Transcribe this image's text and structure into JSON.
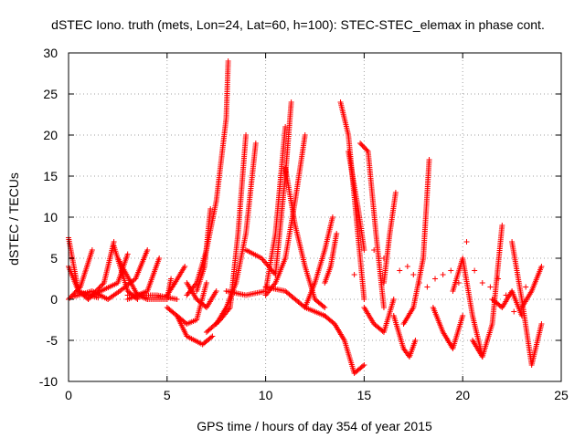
{
  "chart_data": {
    "type": "scatter",
    "title": "dSTEC Iono. truth (mets, Lon=24, Lat=60, h=100): STEC-STEC_elemax in phase cont.",
    "xlabel": "GPS time / hours of day 354 of year 2015",
    "ylabel": "dSTEC  / TECUs",
    "xlim": [
      0,
      25
    ],
    "ylim": [
      -10,
      30
    ],
    "xticks": [
      0,
      5,
      10,
      15,
      20,
      25
    ],
    "yticks": [
      -10,
      -5,
      0,
      5,
      10,
      15,
      20,
      25,
      30
    ],
    "xtick_labels": [
      "0",
      "5",
      "10",
      "15",
      "20",
      "25"
    ],
    "ytick_labels": [
      "-10",
      "-5",
      "0",
      "5",
      "10",
      "15",
      "20",
      "25",
      "30"
    ],
    "grid": true,
    "legend": "none",
    "marker": "+",
    "color": "#ff0000",
    "arcs": [
      {
        "x": [
          0.0,
          0.5,
          1.0
        ],
        "y": [
          7.5,
          1.0,
          0.0
        ]
      },
      {
        "x": [
          0.0,
          0.6,
          1.2
        ],
        "y": [
          0.0,
          1.5,
          6.0
        ]
      },
      {
        "x": [
          0.0,
          0.5,
          1.0,
          1.5
        ],
        "y": [
          4.0,
          1.0,
          0.5,
          0.2
        ]
      },
      {
        "x": [
          0.2,
          1.2,
          2.0
        ],
        "y": [
          0.3,
          1.0,
          0.0
        ]
      },
      {
        "x": [
          1.0,
          1.8,
          2.3
        ],
        "y": [
          0.0,
          2.0,
          7.0
        ]
      },
      {
        "x": [
          2.3,
          3.0,
          3.5
        ],
        "y": [
          6.5,
          1.0,
          0.0
        ]
      },
      {
        "x": [
          1.2,
          2.5,
          3.0
        ],
        "y": [
          0.5,
          2.0,
          5.5
        ]
      },
      {
        "x": [
          2.0,
          2.6,
          3.4,
          4.0
        ],
        "y": [
          0.0,
          1.0,
          2.5,
          6.0
        ]
      },
      {
        "x": [
          2.5,
          3.5,
          4.0
        ],
        "y": [
          5.0,
          0.5,
          0.0
        ]
      },
      {
        "x": [
          3.0,
          4.0,
          4.6
        ],
        "y": [
          0.0,
          1.0,
          5.0
        ]
      },
      {
        "x": [
          3.0,
          4.5,
          5.5
        ],
        "y": [
          0.5,
          0.5,
          0.0
        ]
      },
      {
        "x": [
          4.0,
          5.0,
          5.2
        ],
        "y": [
          0.0,
          0.0,
          2.5
        ]
      },
      {
        "x": [
          5.0,
          5.4,
          5.9
        ],
        "y": [
          0.5,
          2.0,
          4.0
        ]
      },
      {
        "x": [
          5.0,
          5.5,
          6.0,
          6.5,
          7.0
        ],
        "y": [
          -1.0,
          -2.0,
          -3.0,
          -2.5,
          2.0
        ]
      },
      {
        "x": [
          5.5,
          6.0,
          6.8,
          7.3
        ],
        "y": [
          -2.0,
          -4.5,
          -5.5,
          -4.5
        ]
      },
      {
        "x": [
          6.0,
          6.5,
          7.0,
          7.5
        ],
        "y": [
          2.0,
          0.0,
          -1.0,
          1.0
        ]
      },
      {
        "x": [
          6.5,
          6.9,
          7.2
        ],
        "y": [
          1.0,
          4.0,
          11.0
        ]
      },
      {
        "x": [
          6.0,
          6.5,
          7.0,
          7.5,
          8.0,
          8.1
        ],
        "y": [
          0.5,
          2.0,
          6.0,
          12.0,
          22.0,
          29.0
        ]
      },
      {
        "x": [
          7.0,
          7.7,
          8.2,
          8.6,
          9.0
        ],
        "y": [
          -4.0,
          -2.5,
          -1.0,
          8.0,
          20.0
        ]
      },
      {
        "x": [
          7.5,
          8.0,
          8.5,
          9.0,
          9.5
        ],
        "y": [
          -3.0,
          -1.0,
          2.0,
          8.0,
          19.0
        ]
      },
      {
        "x": [
          8.0,
          9.0,
          10.0,
          10.5,
          11.0
        ],
        "y": [
          1.0,
          0.5,
          1.0,
          8.0,
          21.0
        ]
      },
      {
        "x": [
          9.0,
          9.8,
          10.5,
          11.0,
          11.3
        ],
        "y": [
          6.0,
          5.0,
          3.0,
          15.0,
          24.0
        ]
      },
      {
        "x": [
          10.0,
          10.5,
          11.0,
          11.5,
          12.0
        ],
        "y": [
          0.5,
          2.0,
          5.0,
          12.0,
          20.0
        ]
      },
      {
        "x": [
          10.0,
          11.0,
          12.0,
          13.0
        ],
        "y": [
          1.5,
          1.0,
          -1.0,
          -2.0
        ]
      },
      {
        "x": [
          11.0,
          11.5,
          12.0,
          12.5,
          13.0
        ],
        "y": [
          16.0,
          9.0,
          4.0,
          0.0,
          -1.0
        ]
      },
      {
        "x": [
          12.0,
          12.5,
          13.0,
          13.4
        ],
        "y": [
          -1.0,
          2.0,
          6.0,
          10.0
        ]
      },
      {
        "x": [
          13.0,
          13.3,
          13.6
        ],
        "y": [
          2.0,
          4.0,
          8.0
        ]
      },
      {
        "x": [
          13.0,
          13.5,
          14.0,
          14.5,
          15.0
        ],
        "y": [
          -2.0,
          -3.0,
          -5.0,
          -9.0,
          -8.0
        ]
      },
      {
        "x": [
          13.8,
          14.2,
          14.6,
          15.0
        ],
        "y": [
          24.0,
          20.0,
          10.0,
          0.0
        ]
      },
      {
        "x": [
          14.2,
          14.7,
          15.0
        ],
        "y": [
          18.0,
          11.0,
          6.0
        ]
      },
      {
        "x": [
          14.8,
          15.2,
          15.6,
          16.0
        ],
        "y": [
          19.0,
          18.0,
          8.0,
          -1.0
        ]
      },
      {
        "x": [
          15.0,
          15.5,
          16.0,
          16.5
        ],
        "y": [
          -1.0,
          -3.0,
          -4.0,
          0.0
        ]
      },
      {
        "x": [
          16.0,
          16.3,
          16.6
        ],
        "y": [
          2.0,
          8.0,
          13.0
        ]
      },
      {
        "x": [
          16.5,
          17.0,
          17.3,
          17.6
        ],
        "y": [
          -2.0,
          -6.0,
          -7.0,
          -5.0
        ]
      },
      {
        "x": [
          17.0,
          17.5,
          18.0,
          18.3
        ],
        "y": [
          -3.0,
          -1.0,
          5.0,
          17.0
        ]
      },
      {
        "x": [
          18.5,
          19.0,
          19.5,
          20.0
        ],
        "y": [
          -1.0,
          -4.0,
          -6.0,
          -2.0
        ]
      },
      {
        "x": [
          19.5,
          20.0,
          20.5,
          21.0
        ],
        "y": [
          1.0,
          5.0,
          -2.0,
          -7.0
        ]
      },
      {
        "x": [
          20.5,
          21.0,
          21.5,
          22.0
        ],
        "y": [
          -5.0,
          -7.0,
          -3.0,
          9.0
        ]
      },
      {
        "x": [
          21.5,
          22.0,
          22.5,
          23.0
        ],
        "y": [
          0.0,
          -1.0,
          1.0,
          -2.0
        ]
      },
      {
        "x": [
          22.5,
          23.0,
          23.5,
          24.0
        ],
        "y": [
          7.0,
          0.0,
          -8.0,
          -3.0
        ]
      },
      {
        "x": [
          23.0,
          23.5,
          24.0
        ],
        "y": [
          -1.0,
          1.0,
          4.0
        ]
      }
    ],
    "scatter_points": [
      {
        "x": 14.5,
        "y": 3.0
      },
      {
        "x": 15.5,
        "y": 6.0
      },
      {
        "x": 16.0,
        "y": 5.0
      },
      {
        "x": 16.8,
        "y": 3.5
      },
      {
        "x": 17.2,
        "y": 4.0
      },
      {
        "x": 17.5,
        "y": 3.0
      },
      {
        "x": 17.8,
        "y": 2.0
      },
      {
        "x": 18.2,
        "y": 1.5
      },
      {
        "x": 18.6,
        "y": 2.5
      },
      {
        "x": 19.0,
        "y": 3.0
      },
      {
        "x": 19.4,
        "y": 3.5
      },
      {
        "x": 19.8,
        "y": 2.0
      },
      {
        "x": 20.2,
        "y": 7.0
      },
      {
        "x": 20.6,
        "y": 3.5
      },
      {
        "x": 21.0,
        "y": 2.0
      },
      {
        "x": 21.4,
        "y": 1.5
      },
      {
        "x": 21.8,
        "y": 2.5
      },
      {
        "x": 22.2,
        "y": 0.5
      },
      {
        "x": 22.6,
        "y": -1.5
      },
      {
        "x": 23.2,
        "y": 1.5
      }
    ]
  }
}
